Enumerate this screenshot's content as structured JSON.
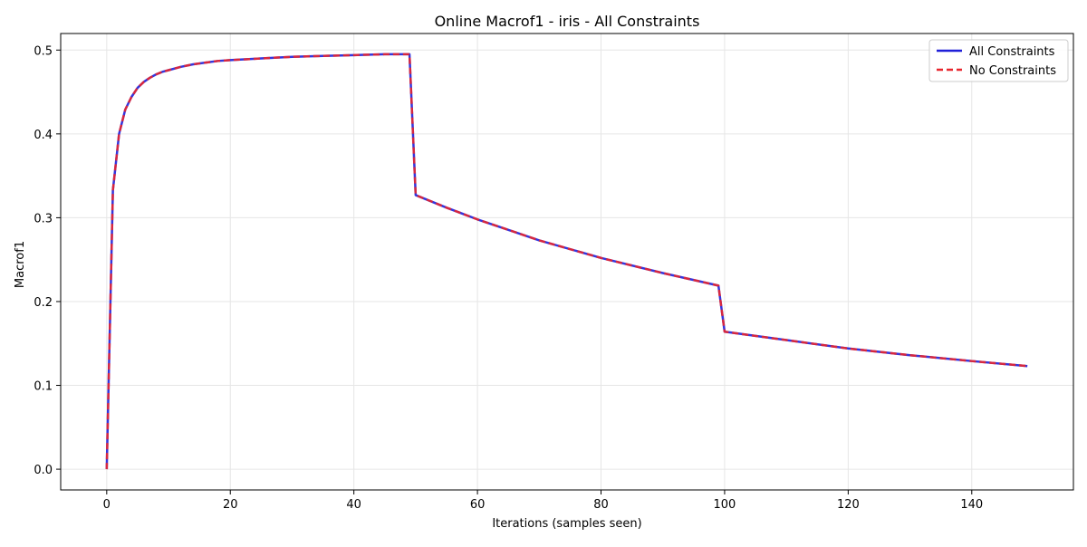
{
  "chart_data": {
    "type": "line",
    "title": "Online Macrof1 - iris - All Constraints",
    "xlabel": "Iterations (samples seen)",
    "ylabel": "Macrof1",
    "xlim": [
      -7.45,
      156.45
    ],
    "ylim": [
      -0.02475,
      0.51975
    ],
    "x_ticks": [
      0,
      20,
      40,
      60,
      80,
      100,
      120,
      140
    ],
    "y_ticks": [
      0.0,
      0.1,
      0.2,
      0.3,
      0.4,
      0.5
    ],
    "x_tick_labels": [
      "0",
      "20",
      "40",
      "60",
      "80",
      "100",
      "120",
      "140"
    ],
    "y_tick_labels": [
      "0.0",
      "0.1",
      "0.2",
      "0.3",
      "0.4",
      "0.5"
    ],
    "grid": true,
    "legend_position": "top-right",
    "x": [
      0,
      1,
      2,
      3,
      4,
      5,
      6,
      7,
      8,
      9,
      10,
      12,
      14,
      16,
      18,
      20,
      25,
      30,
      35,
      40,
      45,
      49,
      50,
      55,
      60,
      70,
      80,
      90,
      99,
      100,
      110,
      120,
      130,
      140,
      149
    ],
    "series": [
      {
        "name": "All Constraints",
        "color": "#1f1fd8",
        "line_style": "solid",
        "values": [
          0.0,
          0.333,
          0.4,
          0.429,
          0.444,
          0.455,
          0.462,
          0.467,
          0.471,
          0.474,
          0.476,
          0.48,
          0.483,
          0.485,
          0.487,
          0.488,
          0.49,
          0.492,
          0.493,
          0.494,
          0.495,
          0.495,
          0.327,
          0.312,
          0.298,
          0.273,
          0.252,
          0.234,
          0.219,
          0.164,
          0.154,
          0.144,
          0.136,
          0.129,
          0.123
        ]
      },
      {
        "name": "No Constraints",
        "color": "#e8262e",
        "line_style": "dashed",
        "values": [
          0.0,
          0.333,
          0.4,
          0.429,
          0.444,
          0.455,
          0.462,
          0.467,
          0.471,
          0.474,
          0.476,
          0.48,
          0.483,
          0.485,
          0.487,
          0.488,
          0.49,
          0.492,
          0.493,
          0.494,
          0.495,
          0.495,
          0.327,
          0.312,
          0.298,
          0.273,
          0.252,
          0.234,
          0.219,
          0.164,
          0.154,
          0.144,
          0.136,
          0.129,
          0.123
        ]
      }
    ]
  }
}
